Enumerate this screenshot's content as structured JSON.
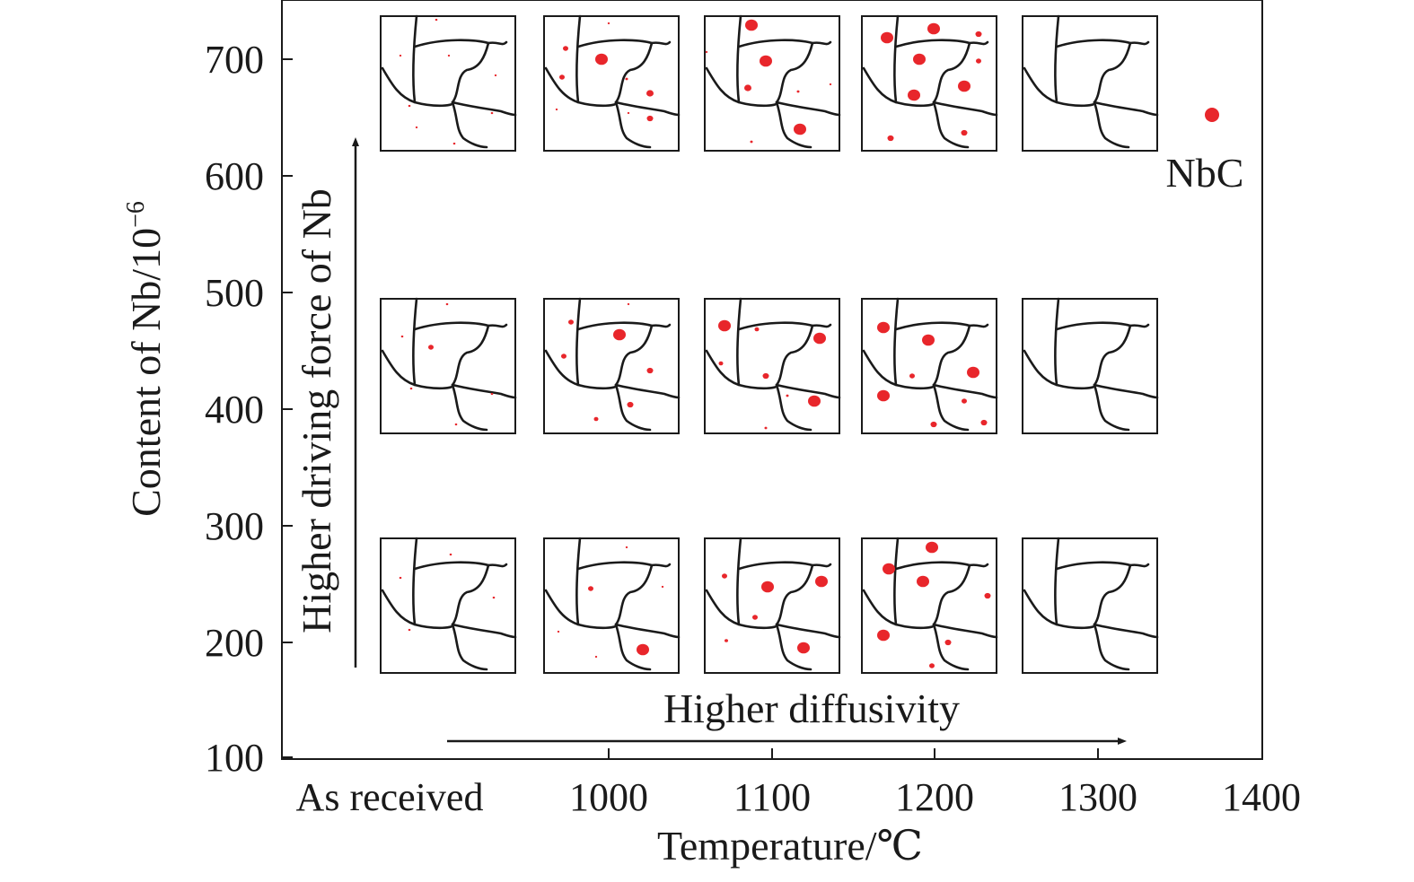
{
  "axes": {
    "y_label": "Content of Nb/10",
    "y_label_exp": "−6",
    "x_label": "Temperature/℃",
    "y_ticks": [
      "100",
      "200",
      "300",
      "400",
      "500",
      "600",
      "700"
    ],
    "x_ticks": [
      "As received",
      "1000",
      "1100",
      "1200",
      "1300",
      "1400"
    ]
  },
  "annotations": {
    "vertical_arrow": "Higher driving force of Nb",
    "horizontal_arrow": "Higher diffusivity",
    "legend_label": "NbC"
  },
  "colors": {
    "precipitate": "#e8262b",
    "grain_boundary": "#1a1a1a"
  },
  "panel_grid": {
    "rows": [
      "700",
      "450",
      "250"
    ],
    "columns": [
      "As received",
      "1000",
      "1100",
      "1200",
      "1300"
    ]
  }
}
